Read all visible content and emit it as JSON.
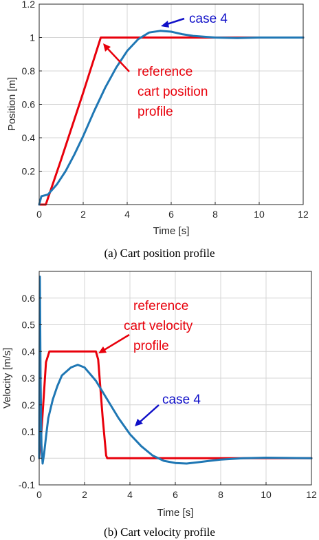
{
  "colors": {
    "reference": "#e8000b",
    "case": "#1f77b4",
    "case_annotation": "#1010c8",
    "grid": "#d4d4d4",
    "axes": "#262626"
  },
  "chart_data": [
    {
      "type": "line",
      "caption": "(a) Cart position profile",
      "xlabel": "Time [s]",
      "ylabel": "Position [m]",
      "xlim": [
        0,
        12
      ],
      "ylim": [
        0,
        1.2
      ],
      "xticks": [
        0,
        2,
        4,
        6,
        8,
        10,
        12
      ],
      "yticks": [
        0.2,
        0.4,
        0.6,
        0.8,
        1,
        1.2
      ],
      "grid": true,
      "series": [
        {
          "role": "reference",
          "x": [
            0,
            0.3,
            1,
            2,
            2.8,
            3,
            4,
            6,
            8,
            10,
            12
          ],
          "y": [
            0,
            0,
            0.27,
            0.67,
            1.0,
            1.0,
            1.0,
            1.0,
            1.0,
            1.0,
            1.0
          ]
        },
        {
          "role": "case",
          "x": [
            0,
            0.1,
            0.4,
            0.8,
            1.2,
            1.6,
            2,
            2.5,
            3,
            3.5,
            4,
            4.5,
            5,
            5.5,
            6,
            6.5,
            7,
            8,
            9,
            10,
            11,
            12
          ],
          "y": [
            0.0,
            0.05,
            0.06,
            0.12,
            0.2,
            0.3,
            0.41,
            0.56,
            0.7,
            0.82,
            0.92,
            0.99,
            1.03,
            1.04,
            1.035,
            1.02,
            1.01,
            1.0,
            0.997,
            1.0,
            1.0,
            1.0
          ]
        }
      ],
      "annotations": [
        {
          "text": "case 4",
          "color": "case_annotation"
        },
        {
          "lines": [
            "reference",
            "cart position",
            "profile"
          ],
          "color": "reference"
        }
      ]
    },
    {
      "type": "line",
      "caption": "(b) Cart velocity profile",
      "xlabel": "Time [s]",
      "ylabel": "Velocity [m/s]",
      "xlim": [
        0,
        12
      ],
      "ylim": [
        -0.1,
        0.7
      ],
      "xticks": [
        0,
        2,
        4,
        6,
        8,
        10,
        12
      ],
      "yticks": [
        -0.1,
        0,
        0.1,
        0.2,
        0.3,
        0.4,
        0.5,
        0.6
      ],
      "grid": true,
      "series": [
        {
          "role": "reference",
          "x": [
            0,
            0.1,
            0.3,
            0.45,
            2.5,
            2.6,
            2.8,
            2.95,
            3,
            4,
            6,
            8,
            10,
            12
          ],
          "y": [
            0,
            0.1,
            0.36,
            0.4,
            0.4,
            0.37,
            0.15,
            0.01,
            0,
            0,
            0,
            0,
            0,
            0
          ]
        },
        {
          "role": "case",
          "x": [
            0,
            0.03,
            0.06,
            0.1,
            0.15,
            0.22,
            0.3,
            0.4,
            0.6,
            0.8,
            1,
            1.4,
            1.7,
            2,
            2.5,
            3,
            3.5,
            4,
            4.5,
            5,
            5.5,
            6,
            6.5,
            7,
            7.5,
            8,
            9,
            10,
            11,
            12
          ],
          "y": [
            0.0,
            0.68,
            0.3,
            0.05,
            -0.02,
            0.02,
            0.08,
            0.15,
            0.22,
            0.27,
            0.31,
            0.34,
            0.35,
            0.34,
            0.29,
            0.22,
            0.15,
            0.09,
            0.045,
            0.01,
            -0.01,
            -0.018,
            -0.02,
            -0.015,
            -0.01,
            -0.005,
            0.0,
            0.002,
            0.001,
            0.0
          ]
        }
      ],
      "annotations": [
        {
          "lines": [
            "reference",
            "cart velocity",
            "profile"
          ],
          "color": "reference"
        },
        {
          "text": "case 4",
          "color": "case_annotation"
        }
      ]
    }
  ]
}
